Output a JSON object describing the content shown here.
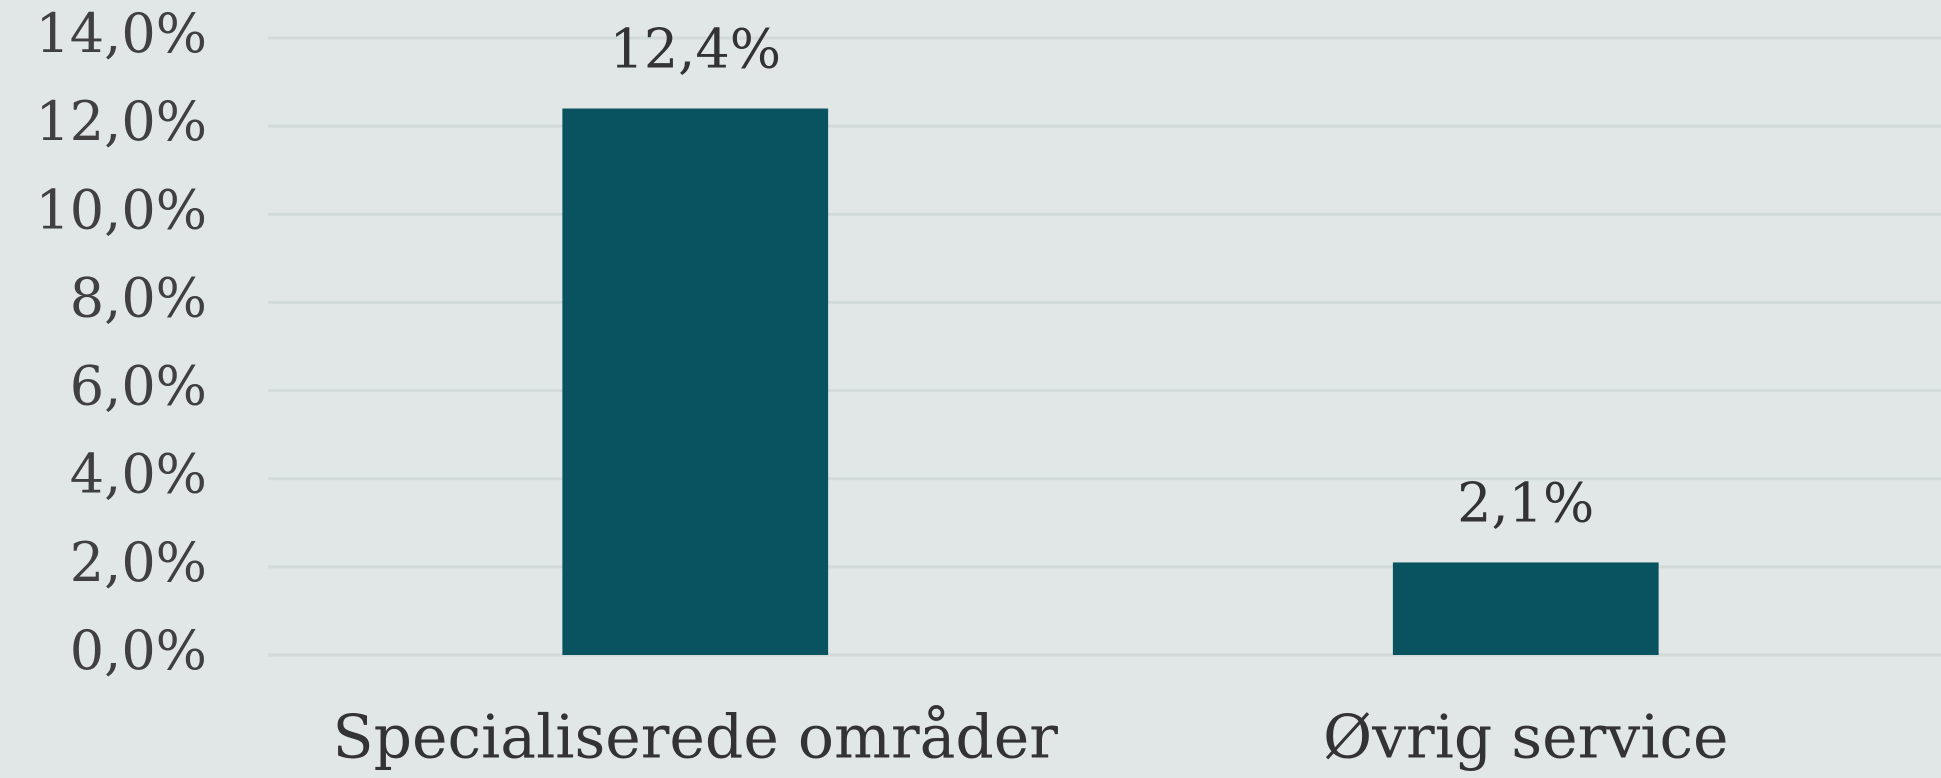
{
  "chart_data": {
    "type": "bar",
    "categories": [
      "Specialiserede områder",
      "Øvrig service"
    ],
    "values": [
      12.4,
      2.1
    ],
    "value_labels": [
      "12,4%",
      "2,1%"
    ],
    "color": "#08535f",
    "ylim": [
      0,
      14
    ],
    "yticks": [
      {
        "value": 0,
        "label": "0,0%"
      },
      {
        "value": 2,
        "label": "2,0%"
      },
      {
        "value": 4,
        "label": "4,0%"
      },
      {
        "value": 6,
        "label": "6,0%"
      },
      {
        "value": 8,
        "label": "8,0%"
      },
      {
        "value": 10,
        "label": "10,0%"
      },
      {
        "value": 12,
        "label": "12,0%"
      },
      {
        "value": 14,
        "label": "14,0%"
      }
    ],
    "grid": true
  }
}
